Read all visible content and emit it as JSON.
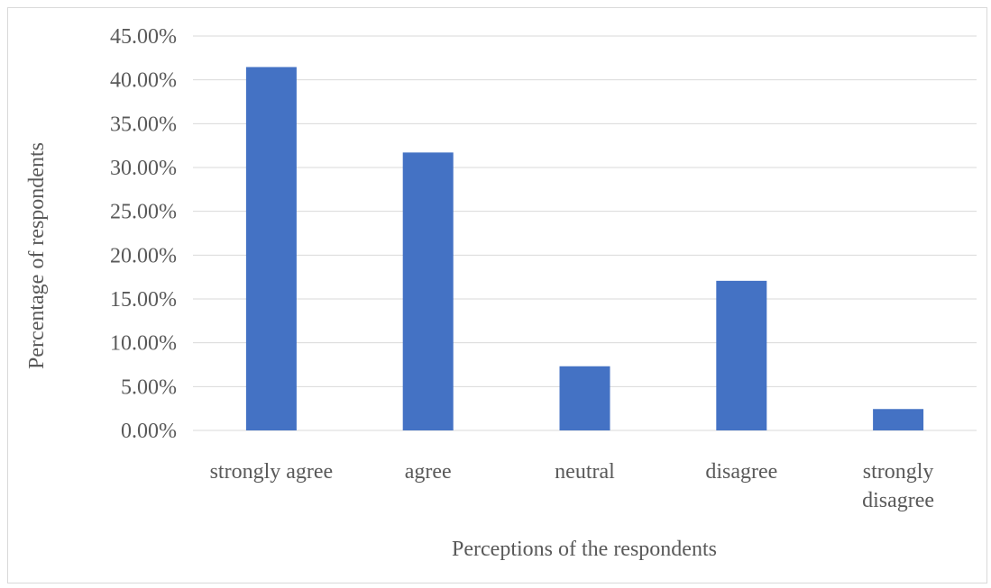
{
  "chart_data": {
    "type": "bar",
    "categories": [
      [
        "strongly agree"
      ],
      [
        "agree"
      ],
      [
        "neutral"
      ],
      [
        "disagree"
      ],
      [
        "strongly",
        "disagree"
      ]
    ],
    "values": [
      41.46,
      31.71,
      7.32,
      17.07,
      2.44
    ],
    "ylim": [
      0,
      45
    ],
    "yticks": [
      "0.00%",
      "5.00%",
      "10.00%",
      "15.00%",
      "20.00%",
      "25.00%",
      "30.00%",
      "35.00%",
      "40.00%",
      "45.00%"
    ],
    "ytick_values": [
      0,
      5,
      10,
      15,
      20,
      25,
      30,
      35,
      40,
      45
    ],
    "xlabel": "Perceptions of the respondents",
    "ylabel": "Percentage of respondents",
    "grid": true,
    "bar_color": "#4472c4",
    "grid_color": "#d9d9d9",
    "text_color": "#595959"
  }
}
